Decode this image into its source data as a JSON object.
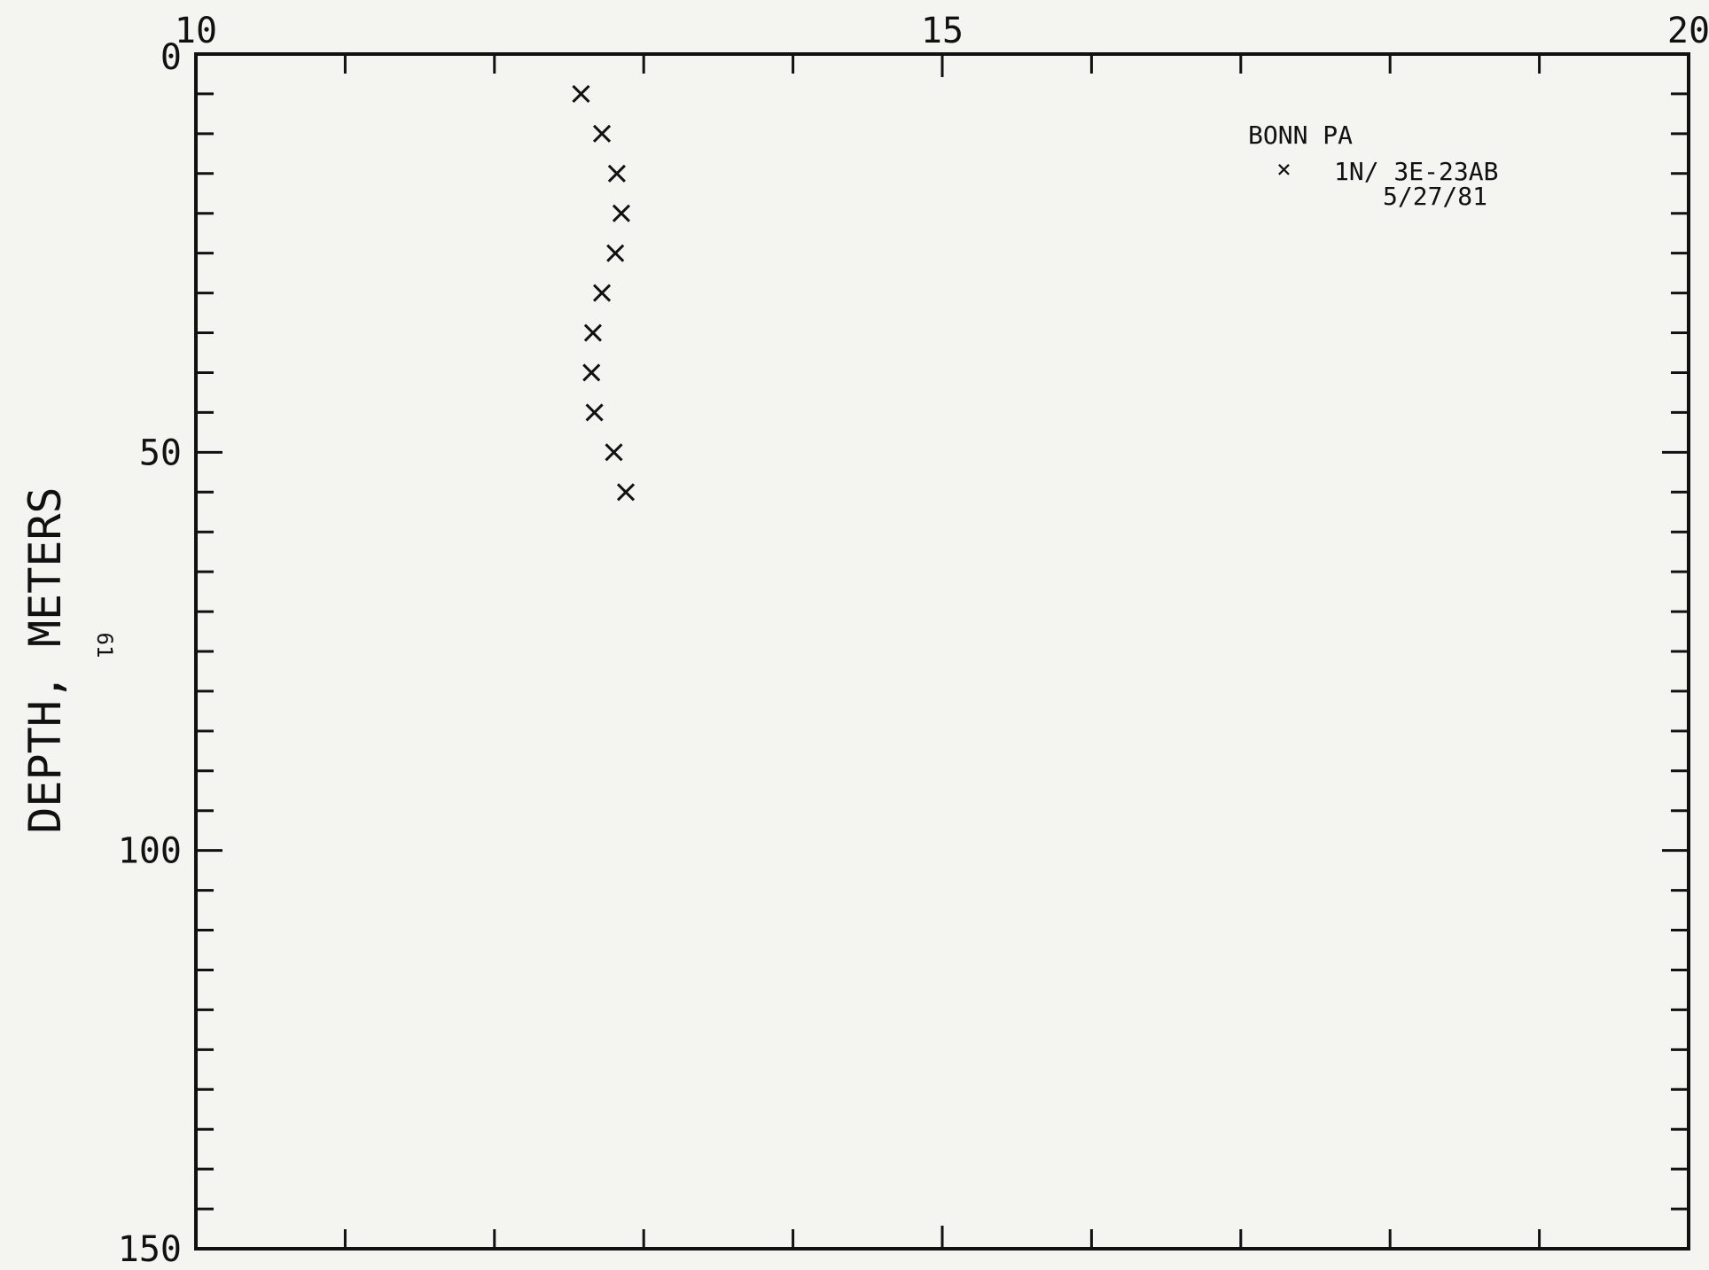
{
  "chart_data": {
    "type": "scatter",
    "title": "",
    "xlabel": "",
    "ylabel": "DEPTH, METERS",
    "xlim": [
      10,
      20
    ],
    "ylim": [
      0,
      150
    ],
    "y_inverted": true,
    "x_ticks": [
      "10",
      "15",
      "20"
    ],
    "y_ticks": [
      "0",
      "50",
      "100",
      "150"
    ],
    "x_minor_step": 1,
    "y_minor_step": 5,
    "grid": false,
    "legend": {
      "placement": "top-right",
      "header": "BONN PA",
      "entries": [
        {
          "marker": "×",
          "label": "1N/ 3E-23AB",
          "sublabel": "5/27/81"
        }
      ]
    },
    "annotation": "61",
    "series": [
      {
        "marker": "x",
        "color": "#111111",
        "points": [
          {
            "x": 12.58,
            "y": 5
          },
          {
            "x": 12.72,
            "y": 10
          },
          {
            "x": 12.82,
            "y": 15
          },
          {
            "x": 12.85,
            "y": 20
          },
          {
            "x": 12.81,
            "y": 25
          },
          {
            "x": 12.72,
            "y": 30
          },
          {
            "x": 12.66,
            "y": 35
          },
          {
            "x": 12.65,
            "y": 40
          },
          {
            "x": 12.67,
            "y": 45
          },
          {
            "x": 12.8,
            "y": 50
          },
          {
            "x": 12.88,
            "y": 55
          }
        ]
      }
    ]
  }
}
